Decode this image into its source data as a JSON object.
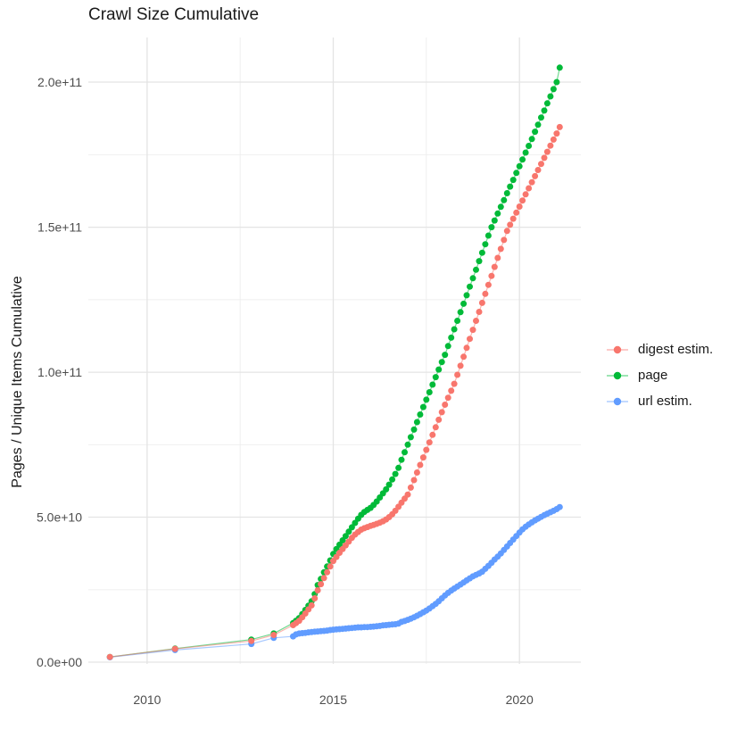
{
  "chart_data": {
    "type": "scatter",
    "with_connecting_lines": true,
    "title": "Crawl Size Cumulative",
    "xlabel": "",
    "ylabel": "Pages / Unique Items Cumulative",
    "grid": true,
    "legend_position": "right",
    "value_unit": "values stored in billions (multiply by 1e9)",
    "x_range": [
      2008.42,
      2021.65
    ],
    "y_range_billions": [
      -0.6,
      215.4
    ],
    "x_ticks": {
      "major": [
        2010,
        2015,
        2020
      ],
      "minor": [
        2012.5,
        2017.5
      ],
      "labels": [
        "2010",
        "2015",
        "2020"
      ]
    },
    "y_ticks": {
      "major_billions": [
        0,
        50,
        100,
        150,
        200
      ],
      "minor_billions": [
        25,
        75,
        125,
        175
      ],
      "labels": [
        "0.0e+00",
        "5.0e+10",
        "1.0e+11",
        "1.5e+11",
        "2.0e+11"
      ]
    },
    "style": {
      "background": "#FFFFFF",
      "grid_major_color": "#E4E4E4",
      "grid_minor_color": "#EDEDED",
      "tick_label_color": "#4D4D4D",
      "text_color": "#1A1A1A"
    },
    "legend": {
      "items": [
        {
          "label": "digest estim.",
          "color": "#F8766D"
        },
        {
          "label": "page",
          "color": "#00BA38"
        },
        {
          "label": "url estim.",
          "color": "#619CFF"
        }
      ]
    },
    "draw_order": [
      "page",
      "url estim.",
      "digest estim."
    ],
    "x": [
      2009.0,
      2010.75,
      2012.8,
      2013.4,
      2013.92,
      2014.0,
      2014.083,
      2014.167,
      2014.25,
      2014.333,
      2014.417,
      2014.5,
      2014.583,
      2014.667,
      2014.75,
      2014.833,
      2014.917,
      2015.0,
      2015.083,
      2015.167,
      2015.25,
      2015.333,
      2015.417,
      2015.5,
      2015.583,
      2015.667,
      2015.75,
      2015.833,
      2015.917,
      2016.0,
      2016.083,
      2016.167,
      2016.25,
      2016.333,
      2016.417,
      2016.5,
      2016.583,
      2016.667,
      2016.75,
      2016.833,
      2016.917,
      2017.0,
      2017.083,
      2017.167,
      2017.25,
      2017.333,
      2017.417,
      2017.5,
      2017.583,
      2017.667,
      2017.75,
      2017.833,
      2017.917,
      2018.0,
      2018.083,
      2018.167,
      2018.25,
      2018.333,
      2018.417,
      2018.5,
      2018.583,
      2018.667,
      2018.75,
      2018.833,
      2018.917,
      2019.0,
      2019.083,
      2019.167,
      2019.25,
      2019.333,
      2019.417,
      2019.5,
      2019.583,
      2019.667,
      2019.75,
      2019.833,
      2019.917,
      2020.0,
      2020.083,
      2020.167,
      2020.25,
      2020.333,
      2020.417,
      2020.5,
      2020.583,
      2020.667,
      2020.75,
      2020.833,
      2020.917,
      2021.0,
      2021.083
    ],
    "series": [
      {
        "id": "digest",
        "name": "digest estim.",
        "color": "#F8766D",
        "values_billions": [
          1.8,
          4.6,
          7.3,
          9.4,
          12.8,
          13.5,
          14.3,
          15.5,
          16.8,
          18.2,
          19.6,
          22.0,
          24.8,
          26.9,
          29.0,
          31.0,
          33.0,
          34.9,
          36.3,
          37.7,
          39.0,
          40.3,
          41.6,
          42.9,
          44.0,
          44.9,
          45.7,
          46.2,
          46.6,
          47.0,
          47.3,
          47.7,
          48.1,
          48.6,
          49.2,
          50.0,
          51.0,
          52.2,
          53.6,
          55.0,
          56.4,
          57.8,
          60.2,
          62.8,
          65.4,
          68.0,
          70.6,
          73.2,
          75.8,
          78.4,
          81.0,
          83.6,
          86.2,
          88.8,
          91.2,
          93.6,
          96.0,
          99.1,
          102.2,
          105.3,
          108.4,
          111.5,
          114.6,
          117.7,
          120.8,
          123.9,
          127.0,
          130.1,
          133.2,
          136.3,
          139.4,
          142.5,
          145.6,
          148.7,
          150.8,
          152.9,
          155.0,
          157.1,
          159.2,
          161.3,
          163.4,
          165.5,
          167.6,
          169.7,
          171.8,
          173.9,
          176.0,
          178.1,
          180.2,
          182.3,
          184.5
        ]
      },
      {
        "id": "page",
        "name": "page",
        "color": "#00BA38",
        "values_billions": [
          1.8,
          4.7,
          7.8,
          9.9,
          13.5,
          14.3,
          15.2,
          16.6,
          18.0,
          19.5,
          21.0,
          23.5,
          26.6,
          28.7,
          31.0,
          33.0,
          35.1,
          37.3,
          39.0,
          40.5,
          42.0,
          43.5,
          45.0,
          46.5,
          48.0,
          49.5,
          50.8,
          51.8,
          52.5,
          53.2,
          54.2,
          55.4,
          56.8,
          58.2,
          59.6,
          61.2,
          63.0,
          64.9,
          67.0,
          69.8,
          72.4,
          75.0,
          77.6,
          80.2,
          82.8,
          85.4,
          88.0,
          90.5,
          93.1,
          95.7,
          98.3,
          100.9,
          103.5,
          106.0,
          109.0,
          111.9,
          114.8,
          117.7,
          120.7,
          123.6,
          126.5,
          129.5,
          132.4,
          135.3,
          138.3,
          141.2,
          144.1,
          147.1,
          150.0,
          152.3,
          154.7,
          157.0,
          159.3,
          161.7,
          164.0,
          166.3,
          168.7,
          171.0,
          173.3,
          175.7,
          178.0,
          180.4,
          182.9,
          185.3,
          187.8,
          190.2,
          192.7,
          195.1,
          197.6,
          200.0,
          205.0
        ]
      },
      {
        "id": "url",
        "name": "url estim.",
        "color": "#619CFF",
        "values_billions": [
          1.7,
          4.2,
          6.3,
          8.4,
          8.9,
          9.6,
          9.9,
          10.0,
          10.1,
          10.3,
          10.4,
          10.5,
          10.6,
          10.7,
          10.8,
          10.9,
          11.1,
          11.2,
          11.3,
          11.4,
          11.5,
          11.6,
          11.7,
          11.8,
          11.9,
          12.0,
          12.0,
          12.1,
          12.1,
          12.2,
          12.3,
          12.4,
          12.5,
          12.7,
          12.8,
          12.9,
          13.0,
          13.1,
          13.3,
          13.9,
          14.2,
          14.6,
          15.0,
          15.5,
          16.0,
          16.6,
          17.2,
          17.8,
          18.5,
          19.3,
          20.1,
          21.0,
          22.0,
          23.0,
          23.9,
          24.7,
          25.4,
          26.1,
          26.8,
          27.5,
          28.2,
          28.9,
          29.6,
          30.1,
          30.6,
          31.2,
          32.2,
          33.2,
          34.3,
          35.4,
          36.4,
          37.5,
          38.7,
          39.9,
          41.1,
          42.3,
          43.5,
          44.7,
          45.8,
          46.7,
          47.5,
          48.2,
          48.9,
          49.5,
          50.1,
          50.7,
          51.2,
          51.7,
          52.2,
          52.8,
          53.5
        ]
      }
    ]
  }
}
